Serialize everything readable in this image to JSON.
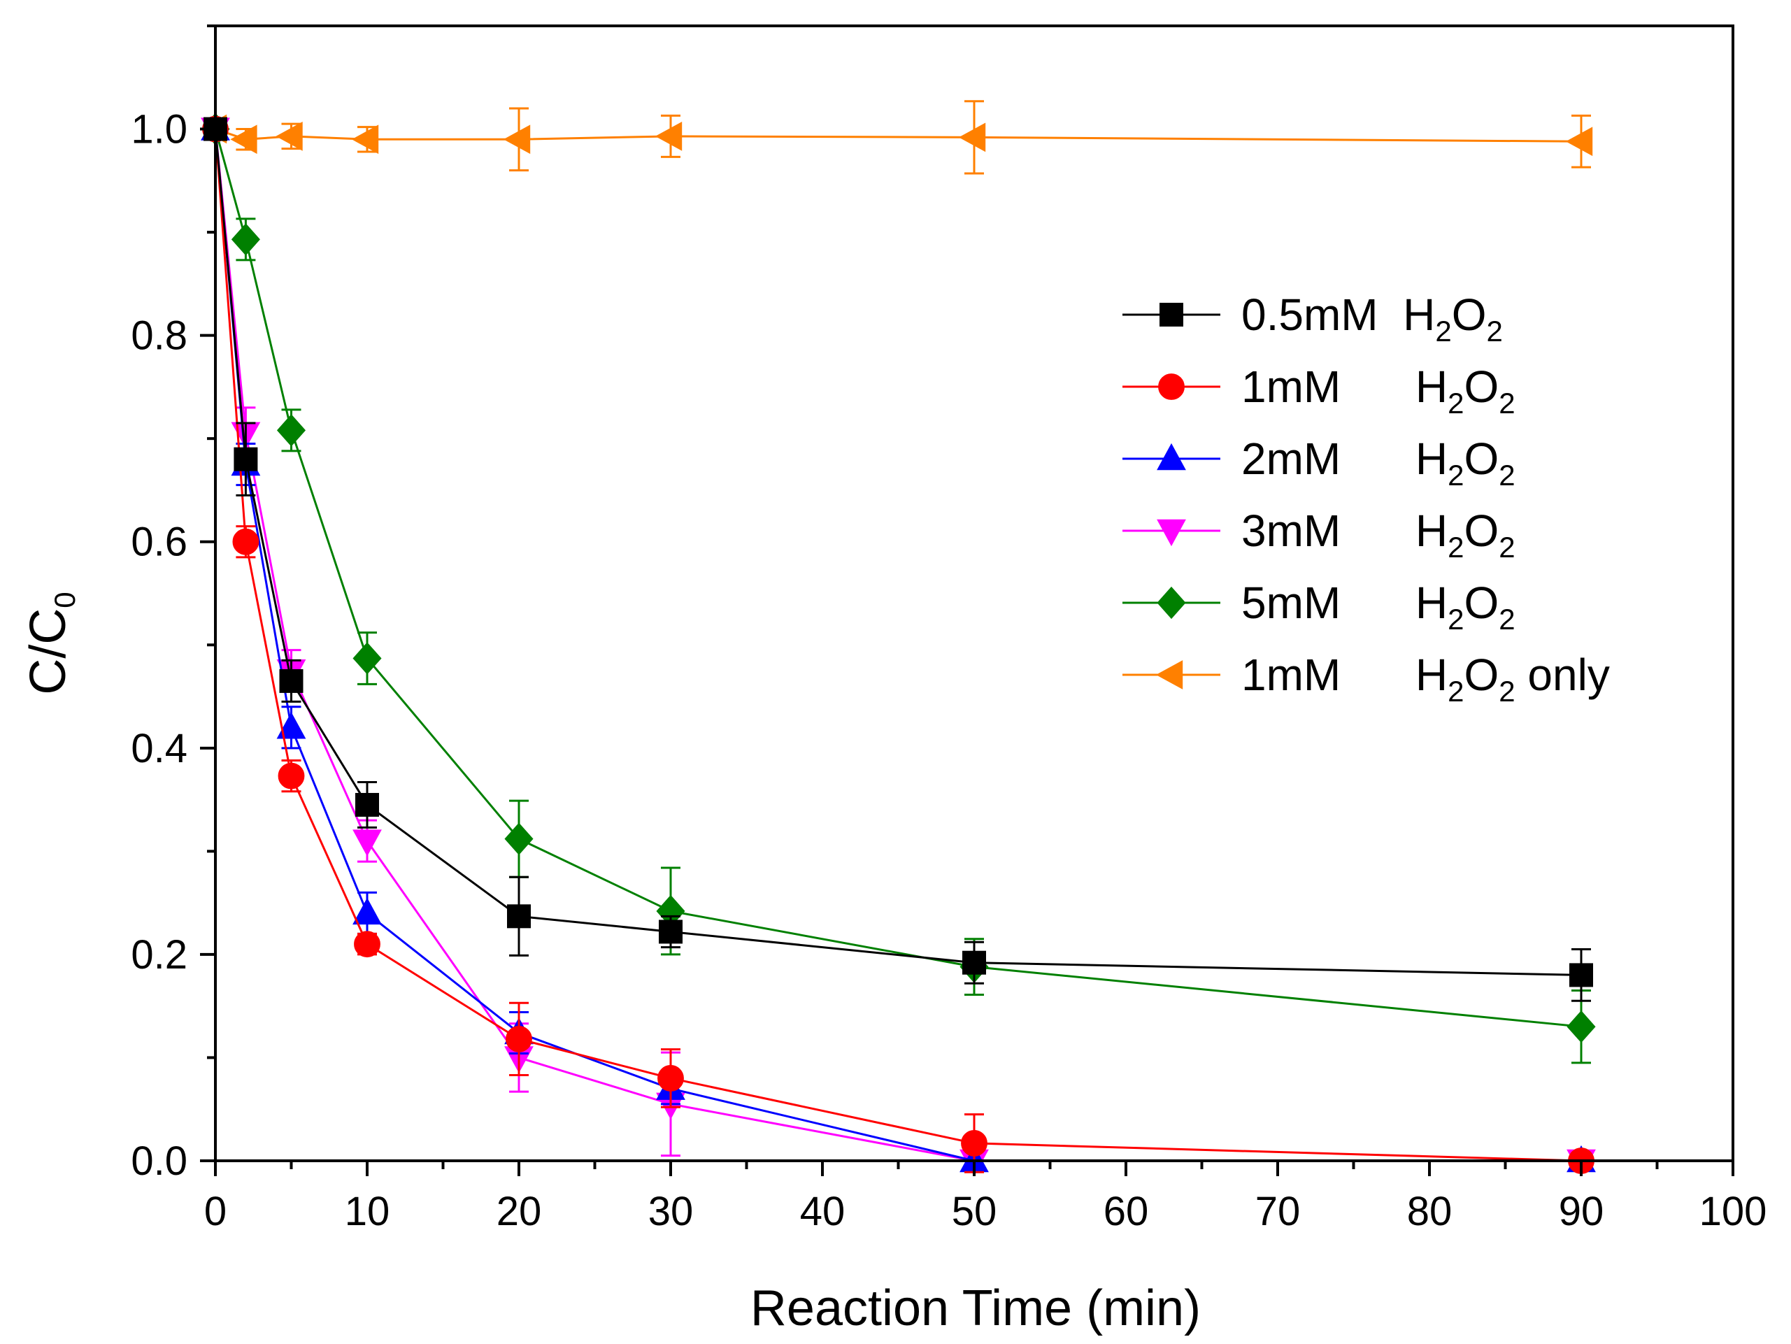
{
  "chart_data": {
    "type": "line",
    "title": "",
    "xlabel": "Reaction Time (min)",
    "ylabel": {
      "main": "C/C",
      "sub": "0"
    },
    "xlim": [
      0,
      100
    ],
    "ylim": [
      0.0,
      1.1
    ],
    "xticks": [
      0,
      10,
      20,
      30,
      40,
      50,
      60,
      70,
      80,
      90,
      100
    ],
    "xtick_labels": [
      "0",
      "10",
      "20",
      "30",
      "40",
      "50",
      "60",
      "70",
      "80",
      "90",
      "100"
    ],
    "yticks": [
      0.0,
      0.2,
      0.4,
      0.6,
      0.8,
      1.0
    ],
    "ytick_labels": [
      "0.0",
      "0.2",
      "0.4",
      "0.6",
      "0.8",
      "1.0"
    ],
    "grid": false,
    "legend_position": "center-right",
    "x": [
      0,
      2,
      5,
      10,
      20,
      30,
      50,
      90
    ],
    "series": [
      {
        "id": "h2o2-0p5mm",
        "legend_parts": [
          "0.5mM  H",
          "2",
          "O",
          "2",
          ""
        ],
        "color": "#000000",
        "marker": "square",
        "values": [
          1.0,
          0.68,
          0.465,
          0.345,
          0.237,
          0.222,
          0.192,
          0.18
        ],
        "errors": [
          0.0,
          0.035,
          0.02,
          0.022,
          0.038,
          0.015,
          0.02,
          0.025
        ]
      },
      {
        "id": "h2o2-1mm",
        "legend_parts": [
          "1mM      H",
          "2",
          "O",
          "2",
          ""
        ],
        "color": "#ff0000",
        "marker": "circle",
        "values": [
          1.0,
          0.6,
          0.373,
          0.21,
          0.118,
          0.08,
          0.017,
          0.0
        ],
        "errors": [
          0.0,
          0.015,
          0.015,
          0.01,
          0.035,
          0.028,
          0.028,
          0.0
        ]
      },
      {
        "id": "h2o2-2mm",
        "legend_parts": [
          "2mM      H",
          "2",
          "O",
          "2",
          ""
        ],
        "color": "#0000ff",
        "marker": "triangle-up",
        "values": [
          1.0,
          0.675,
          0.42,
          0.24,
          0.124,
          0.07,
          0.0,
          0.0
        ],
        "errors": [
          0.0,
          0.02,
          0.02,
          0.02,
          0.02,
          0.015,
          0.0,
          0.0
        ]
      },
      {
        "id": "h2o2-3mm",
        "legend_parts": [
          "3mM      H",
          "2",
          "O",
          "2",
          ""
        ],
        "color": "#ff00ff",
        "marker": "triangle-down",
        "values": [
          1.0,
          0.705,
          0.475,
          0.31,
          0.1,
          0.055,
          0.0,
          0.0
        ],
        "errors": [
          0.0,
          0.025,
          0.02,
          0.02,
          0.033,
          0.05,
          0.0,
          0.0
        ]
      },
      {
        "id": "h2o2-5mm",
        "legend_parts": [
          "5mM      H",
          "2",
          "O",
          "2",
          ""
        ],
        "color": "#008000",
        "marker": "diamond",
        "values": [
          1.0,
          0.893,
          0.708,
          0.487,
          0.312,
          0.242,
          0.188,
          0.13
        ],
        "errors": [
          0.0,
          0.02,
          0.02,
          0.025,
          0.037,
          0.042,
          0.027,
          0.035
        ]
      },
      {
        "id": "h2o2-1mm-only",
        "legend_parts": [
          "1mM      H",
          "2",
          "O",
          "2",
          " only"
        ],
        "color": "#ff8000",
        "marker": "triangle-left",
        "values": [
          1.0,
          0.99,
          0.993,
          0.99,
          0.99,
          0.993,
          0.992,
          0.988
        ],
        "errors": [
          0.0,
          0.01,
          0.012,
          0.012,
          0.03,
          0.02,
          0.035,
          0.025
        ]
      }
    ]
  }
}
